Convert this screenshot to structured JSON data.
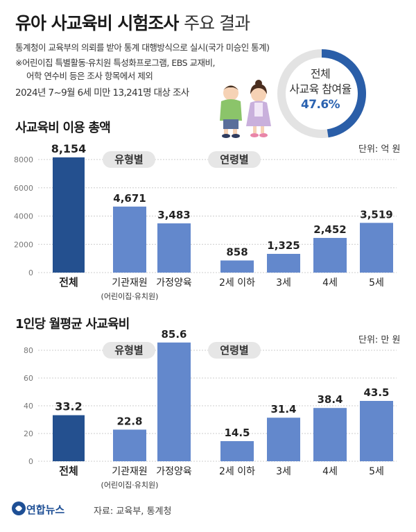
{
  "header": {
    "title": "유아 사교육비 시험조사",
    "title_sub": "주요 결과",
    "note_line1": "통계청이 교육부의 의뢰를 받아 통계 대행방식으로 실시(국가 미승인 통계)",
    "note_line2": "※어린이집 특별활동·유치원 특성화프로그램, EBS 교재비,",
    "note_line3": "어학 연수비 등은 조사 항목에서 제외",
    "note_line4": "2024년 7~9월 6세 미만 13,241명 대상 조사"
  },
  "donut": {
    "label_line1": "전체",
    "label_line2": "사교육 참여율",
    "value_text": "47.6%",
    "value": 47.6,
    "color": "#2a5ea8",
    "track_color": "#e3e3e3"
  },
  "chart_data": [
    {
      "type": "bar",
      "title": "사교육비 이용 총액",
      "unit": "단위: 억 원",
      "ylim": [
        0,
        8000
      ],
      "yticks": [
        0,
        2000,
        4000,
        6000,
        8000
      ],
      "groups": [
        {
          "label": "",
          "categories": [
            "전체"
          ],
          "values": [
            8154
          ],
          "value_labels": [
            "8,154"
          ]
        },
        {
          "label": "유형별",
          "categories": [
            "기관재원",
            "가정양육"
          ],
          "sublabels": [
            "(어린이집·유치원)",
            ""
          ],
          "values": [
            4671,
            3483
          ],
          "value_labels": [
            "4,671",
            "3,483"
          ]
        },
        {
          "label": "연령별",
          "categories": [
            "2세 이하",
            "3세",
            "4세",
            "5세"
          ],
          "values": [
            858,
            1325,
            2452,
            3519
          ],
          "value_labels": [
            "858",
            "1,325",
            "2,452",
            "3,519"
          ]
        }
      ]
    },
    {
      "type": "bar",
      "title": "1인당 월평균 사교육비",
      "unit": "단위: 만 원",
      "ylim": [
        0,
        80
      ],
      "yticks": [
        0,
        20,
        40,
        60,
        80
      ],
      "groups": [
        {
          "label": "",
          "categories": [
            "전체"
          ],
          "values": [
            33.2
          ],
          "value_labels": [
            "33.2"
          ]
        },
        {
          "label": "유형별",
          "categories": [
            "기관재원",
            "가정양육"
          ],
          "sublabels": [
            "(어린이집·유치원)",
            ""
          ],
          "values": [
            22.8,
            85.6
          ],
          "value_labels": [
            "22.8",
            "85.6"
          ]
        },
        {
          "label": "연령별",
          "categories": [
            "2세 이하",
            "3세",
            "4세",
            "5세"
          ],
          "values": [
            14.5,
            31.4,
            38.4,
            43.5
          ],
          "value_labels": [
            "14.5",
            "31.4",
            "38.4",
            "43.5"
          ]
        }
      ]
    }
  ],
  "colors": {
    "total_bar": "#24508f",
    "bar": "#6388cc",
    "group_label_bg": "#e6e6e6",
    "grid": "#cccccc"
  },
  "footer": {
    "logo": "연합뉴스",
    "source": "자료: 교육부, 통계청"
  }
}
